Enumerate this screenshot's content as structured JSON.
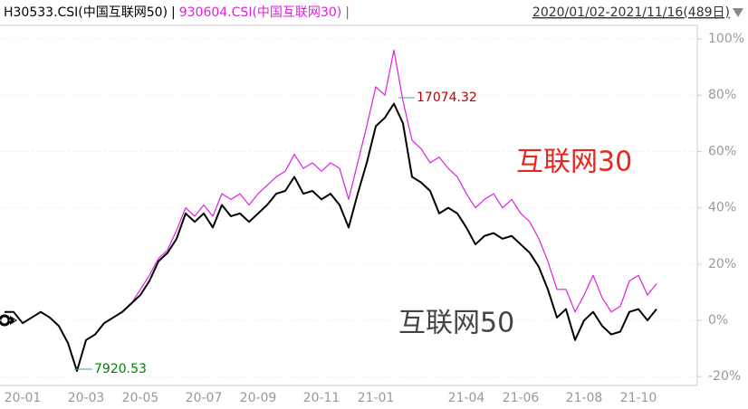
{
  "chart_data": {
    "type": "line",
    "legend_separator": "|",
    "date_range": "2020/01/02-2021/11/16(489日)",
    "categories": [
      null,
      null,
      "20-01",
      null,
      null,
      null,
      null,
      null,
      null,
      "20-03",
      null,
      null,
      null,
      null,
      null,
      "20-05",
      null,
      null,
      null,
      null,
      null,
      null,
      "20-07",
      null,
      null,
      null,
      null,
      null,
      "20-09",
      null,
      null,
      null,
      null,
      null,
      null,
      "20-11",
      null,
      null,
      null,
      null,
      null,
      "21-01",
      null,
      null,
      null,
      null,
      null,
      null,
      null,
      null,
      null,
      "21-04",
      null,
      null,
      null,
      null,
      null,
      "21-06",
      null,
      null,
      null,
      null,
      null,
      null,
      "21-08",
      null,
      null,
      null,
      null,
      null,
      "21-10",
      null,
      null
    ],
    "series": [
      {
        "name": "H30533.CSI(中国互联网50)",
        "color": "#000000",
        "values": [
          3,
          3,
          -1,
          1,
          3,
          1,
          -2,
          -8,
          -18,
          -7,
          -5,
          -1,
          1,
          3,
          6,
          9,
          14,
          21,
          24,
          29,
          38,
          35,
          38,
          33,
          41,
          37,
          38,
          35,
          38,
          41,
          45,
          46,
          51,
          45,
          46,
          43,
          45,
          41,
          33,
          45,
          56,
          69,
          72,
          77,
          70,
          51,
          49,
          46,
          38,
          40,
          38,
          33,
          27,
          30,
          31,
          29,
          30,
          27,
          24,
          19,
          11,
          1,
          4,
          -7,
          0,
          3,
          -2,
          -5,
          -4,
          3,
          4,
          0,
          4
        ]
      },
      {
        "name": "930604.CSI(中国互联网30)",
        "color": "#e020e0",
        "values": [
          3,
          3,
          -1,
          1,
          3,
          1,
          -2,
          -8,
          -18,
          -7,
          -5,
          -1,
          1,
          3,
          6,
          11,
          16,
          22,
          25,
          32,
          40,
          37,
          41,
          37,
          45,
          43,
          45,
          41,
          45,
          48,
          51,
          53,
          59,
          54,
          56,
          53,
          56,
          54,
          43,
          56,
          69,
          83,
          80,
          96,
          78,
          64,
          61,
          56,
          58,
          54,
          51,
          45,
          40,
          43,
          45,
          40,
          43,
          38,
          35,
          29,
          21,
          11,
          11,
          3,
          9,
          16,
          8,
          3,
          5,
          14,
          16,
          9,
          13
        ]
      }
    ],
    "annotations": [
      {
        "text": "17074.32",
        "color": "#c00000"
      },
      {
        "text": "7920.53",
        "color": "#008000"
      },
      {
        "text": "互联网30",
        "color": "#e8261e"
      },
      {
        "text": "互联网50",
        "color": "#444444"
      }
    ],
    "ylim": [
      -25,
      104
    ],
    "yticks": [
      {
        "value": -20,
        "label": "-20%"
      },
      {
        "value": 0,
        "label": "0%"
      },
      {
        "value": 20,
        "label": "20%"
      },
      {
        "value": 40,
        "label": "40%"
      },
      {
        "value": 60,
        "label": "60%"
      },
      {
        "value": 80,
        "label": "80%"
      },
      {
        "value": 100,
        "label": "100%"
      }
    ],
    "grid": true
  }
}
